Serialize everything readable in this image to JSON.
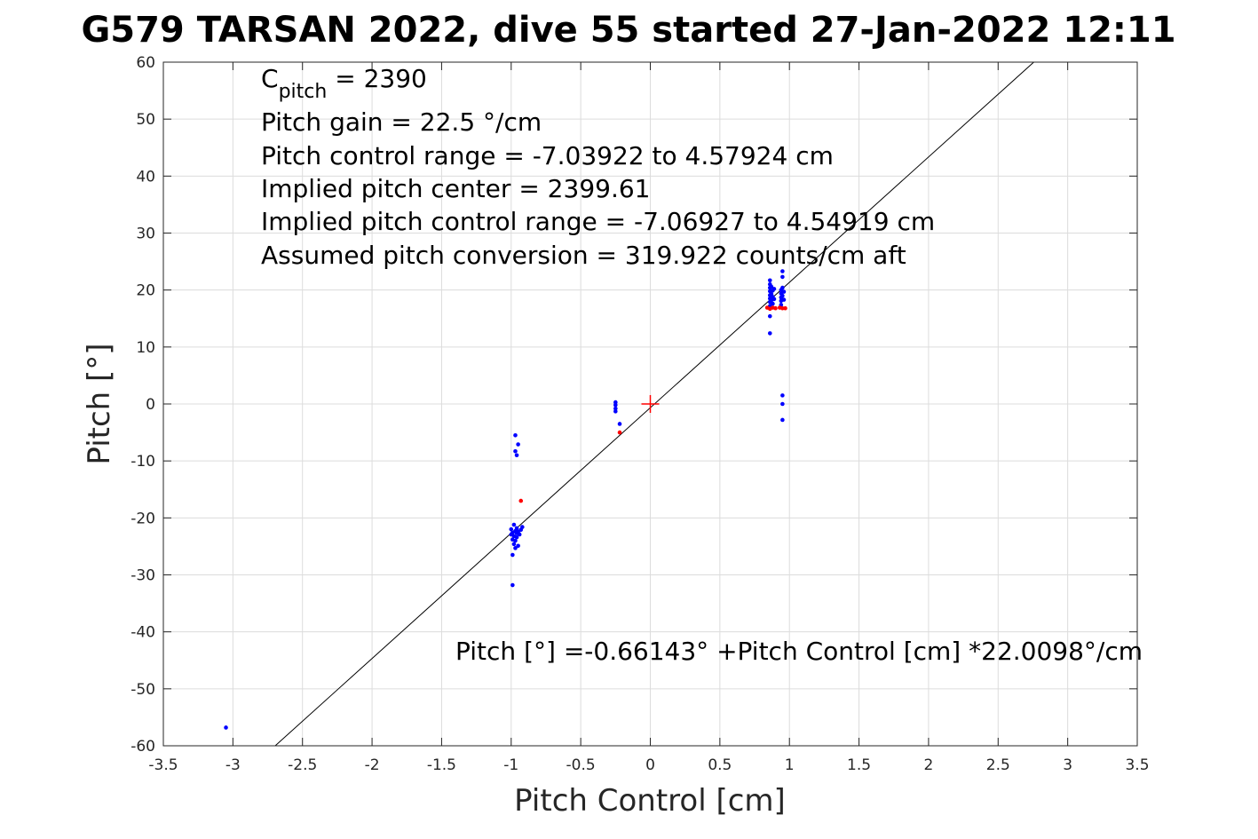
{
  "chart_data": {
    "type": "scatter",
    "title": "G579 TARSAN 2022, dive 55 started 27-Jan-2022 12:11",
    "xlabel": "Pitch Control [cm]",
    "ylabel": "Pitch [°]",
    "xlim": [
      -3.5,
      3.5
    ],
    "ylim": [
      -60,
      60
    ],
    "xticks": [
      -3.5,
      -3,
      -2.5,
      -2,
      -1.5,
      -1,
      -0.5,
      0,
      0.5,
      1,
      1.5,
      2,
      2.5,
      3,
      3.5
    ],
    "xtick_labels": [
      "-3.5",
      "-3",
      "-2.5",
      "-2",
      "-1.5",
      "-1",
      "-0.5",
      "0",
      "0.5",
      "1",
      "1.5",
      "2",
      "2.5",
      "3",
      "3.5"
    ],
    "yticks": [
      -60,
      -50,
      -40,
      -30,
      -20,
      -10,
      0,
      10,
      20,
      30,
      40,
      50,
      60
    ],
    "ytick_labels": [
      "-60",
      "-50",
      "-40",
      "-30",
      "-20",
      "-10",
      "0",
      "10",
      "20",
      "30",
      "40",
      "50",
      "60"
    ],
    "grid": true,
    "colors": {
      "included": "#0000ff",
      "excluded": "#ff0000",
      "fit": "#000000",
      "center": "#ff0000"
    },
    "annotations": {
      "c_pitch_base": "C",
      "c_pitch_sub": "pitch",
      "c_pitch_rest": " = 2390",
      "pitch_gain": "Pitch gain = 22.5 °/cm",
      "control_range": "Pitch control range = -7.03922 to 4.57924 cm",
      "implied_center": "Implied pitch center = 2399.61",
      "implied_range": "Implied pitch control range = -7.06927 to 4.54919 cm",
      "conversion": "Assumed pitch conversion = 319.922 counts/cm aft",
      "fit_equation": "Pitch [°] =-0.66143° +Pitch Control [cm] *22.0098°/cm"
    },
    "fit_line": {
      "intercept": -0.66143,
      "slope": 22.0098
    },
    "center_marker": {
      "x": 0,
      "y": 0
    },
    "series": [
      {
        "points": [
          [
            -3.05,
            -56.8
          ],
          [
            -1.0,
            -22.0
          ],
          [
            -0.99,
            -22.6
          ],
          [
            -0.98,
            -23.2
          ],
          [
            -0.97,
            -22.3
          ],
          [
            -0.99,
            -23.8
          ],
          [
            -0.98,
            -24.6
          ],
          [
            -0.97,
            -25.3
          ],
          [
            -0.99,
            -26.5
          ],
          [
            -0.98,
            -21.2
          ],
          [
            -0.96,
            -21.8
          ],
          [
            -0.95,
            -22.4
          ],
          [
            -0.94,
            -22.9
          ],
          [
            -0.93,
            -22.1
          ],
          [
            -0.92,
            -21.6
          ],
          [
            -0.97,
            -24.0
          ],
          [
            -0.96,
            -23.4
          ],
          [
            -0.95,
            -24.9
          ],
          [
            -1.0,
            -22.9
          ],
          [
            -0.99,
            -31.8
          ],
          [
            -0.96,
            -22.7
          ],
          [
            -0.97,
            -5.5
          ],
          [
            -0.95,
            -7.1
          ],
          [
            -0.97,
            -8.3
          ],
          [
            -0.96,
            -9.0
          ],
          [
            -0.25,
            -0.2
          ],
          [
            -0.25,
            -0.8
          ],
          [
            -0.25,
            -1.3
          ],
          [
            -0.25,
            0.3
          ],
          [
            -0.22,
            -3.5
          ],
          [
            0.86,
            17.2
          ],
          [
            0.86,
            17.9
          ],
          [
            0.86,
            18.5
          ],
          [
            0.86,
            19.1
          ],
          [
            0.86,
            19.8
          ],
          [
            0.86,
            20.4
          ],
          [
            0.86,
            21.0
          ],
          [
            0.86,
            21.7
          ],
          [
            0.87,
            18.2
          ],
          [
            0.87,
            19.3
          ],
          [
            0.87,
            20.6
          ],
          [
            0.88,
            17.6
          ],
          [
            0.88,
            18.8
          ],
          [
            0.88,
            19.9
          ],
          [
            0.89,
            20.2
          ],
          [
            0.89,
            18.4
          ],
          [
            0.86,
            15.4
          ],
          [
            0.86,
            12.4
          ],
          [
            0.94,
            17.4
          ],
          [
            0.94,
            18.1
          ],
          [
            0.94,
            18.7
          ],
          [
            0.94,
            19.4
          ],
          [
            0.94,
            20.0
          ],
          [
            0.95,
            19.0
          ],
          [
            0.95,
            20.4
          ],
          [
            0.95,
            22.3
          ],
          [
            0.95,
            23.3
          ],
          [
            0.96,
            18.3
          ],
          [
            0.96,
            19.7
          ],
          [
            0.95,
            1.5
          ],
          [
            0.95,
            0.0
          ],
          [
            0.95,
            -2.8
          ]
        ]
      },
      {
        "points": [
          [
            -0.93,
            -17.0
          ],
          [
            -0.22,
            -5.0
          ],
          [
            0.84,
            16.9
          ],
          [
            0.86,
            16.7
          ],
          [
            0.88,
            16.9
          ],
          [
            0.9,
            16.8
          ],
          [
            0.93,
            16.9
          ],
          [
            0.95,
            16.8
          ],
          [
            0.97,
            16.8
          ]
        ]
      }
    ]
  }
}
